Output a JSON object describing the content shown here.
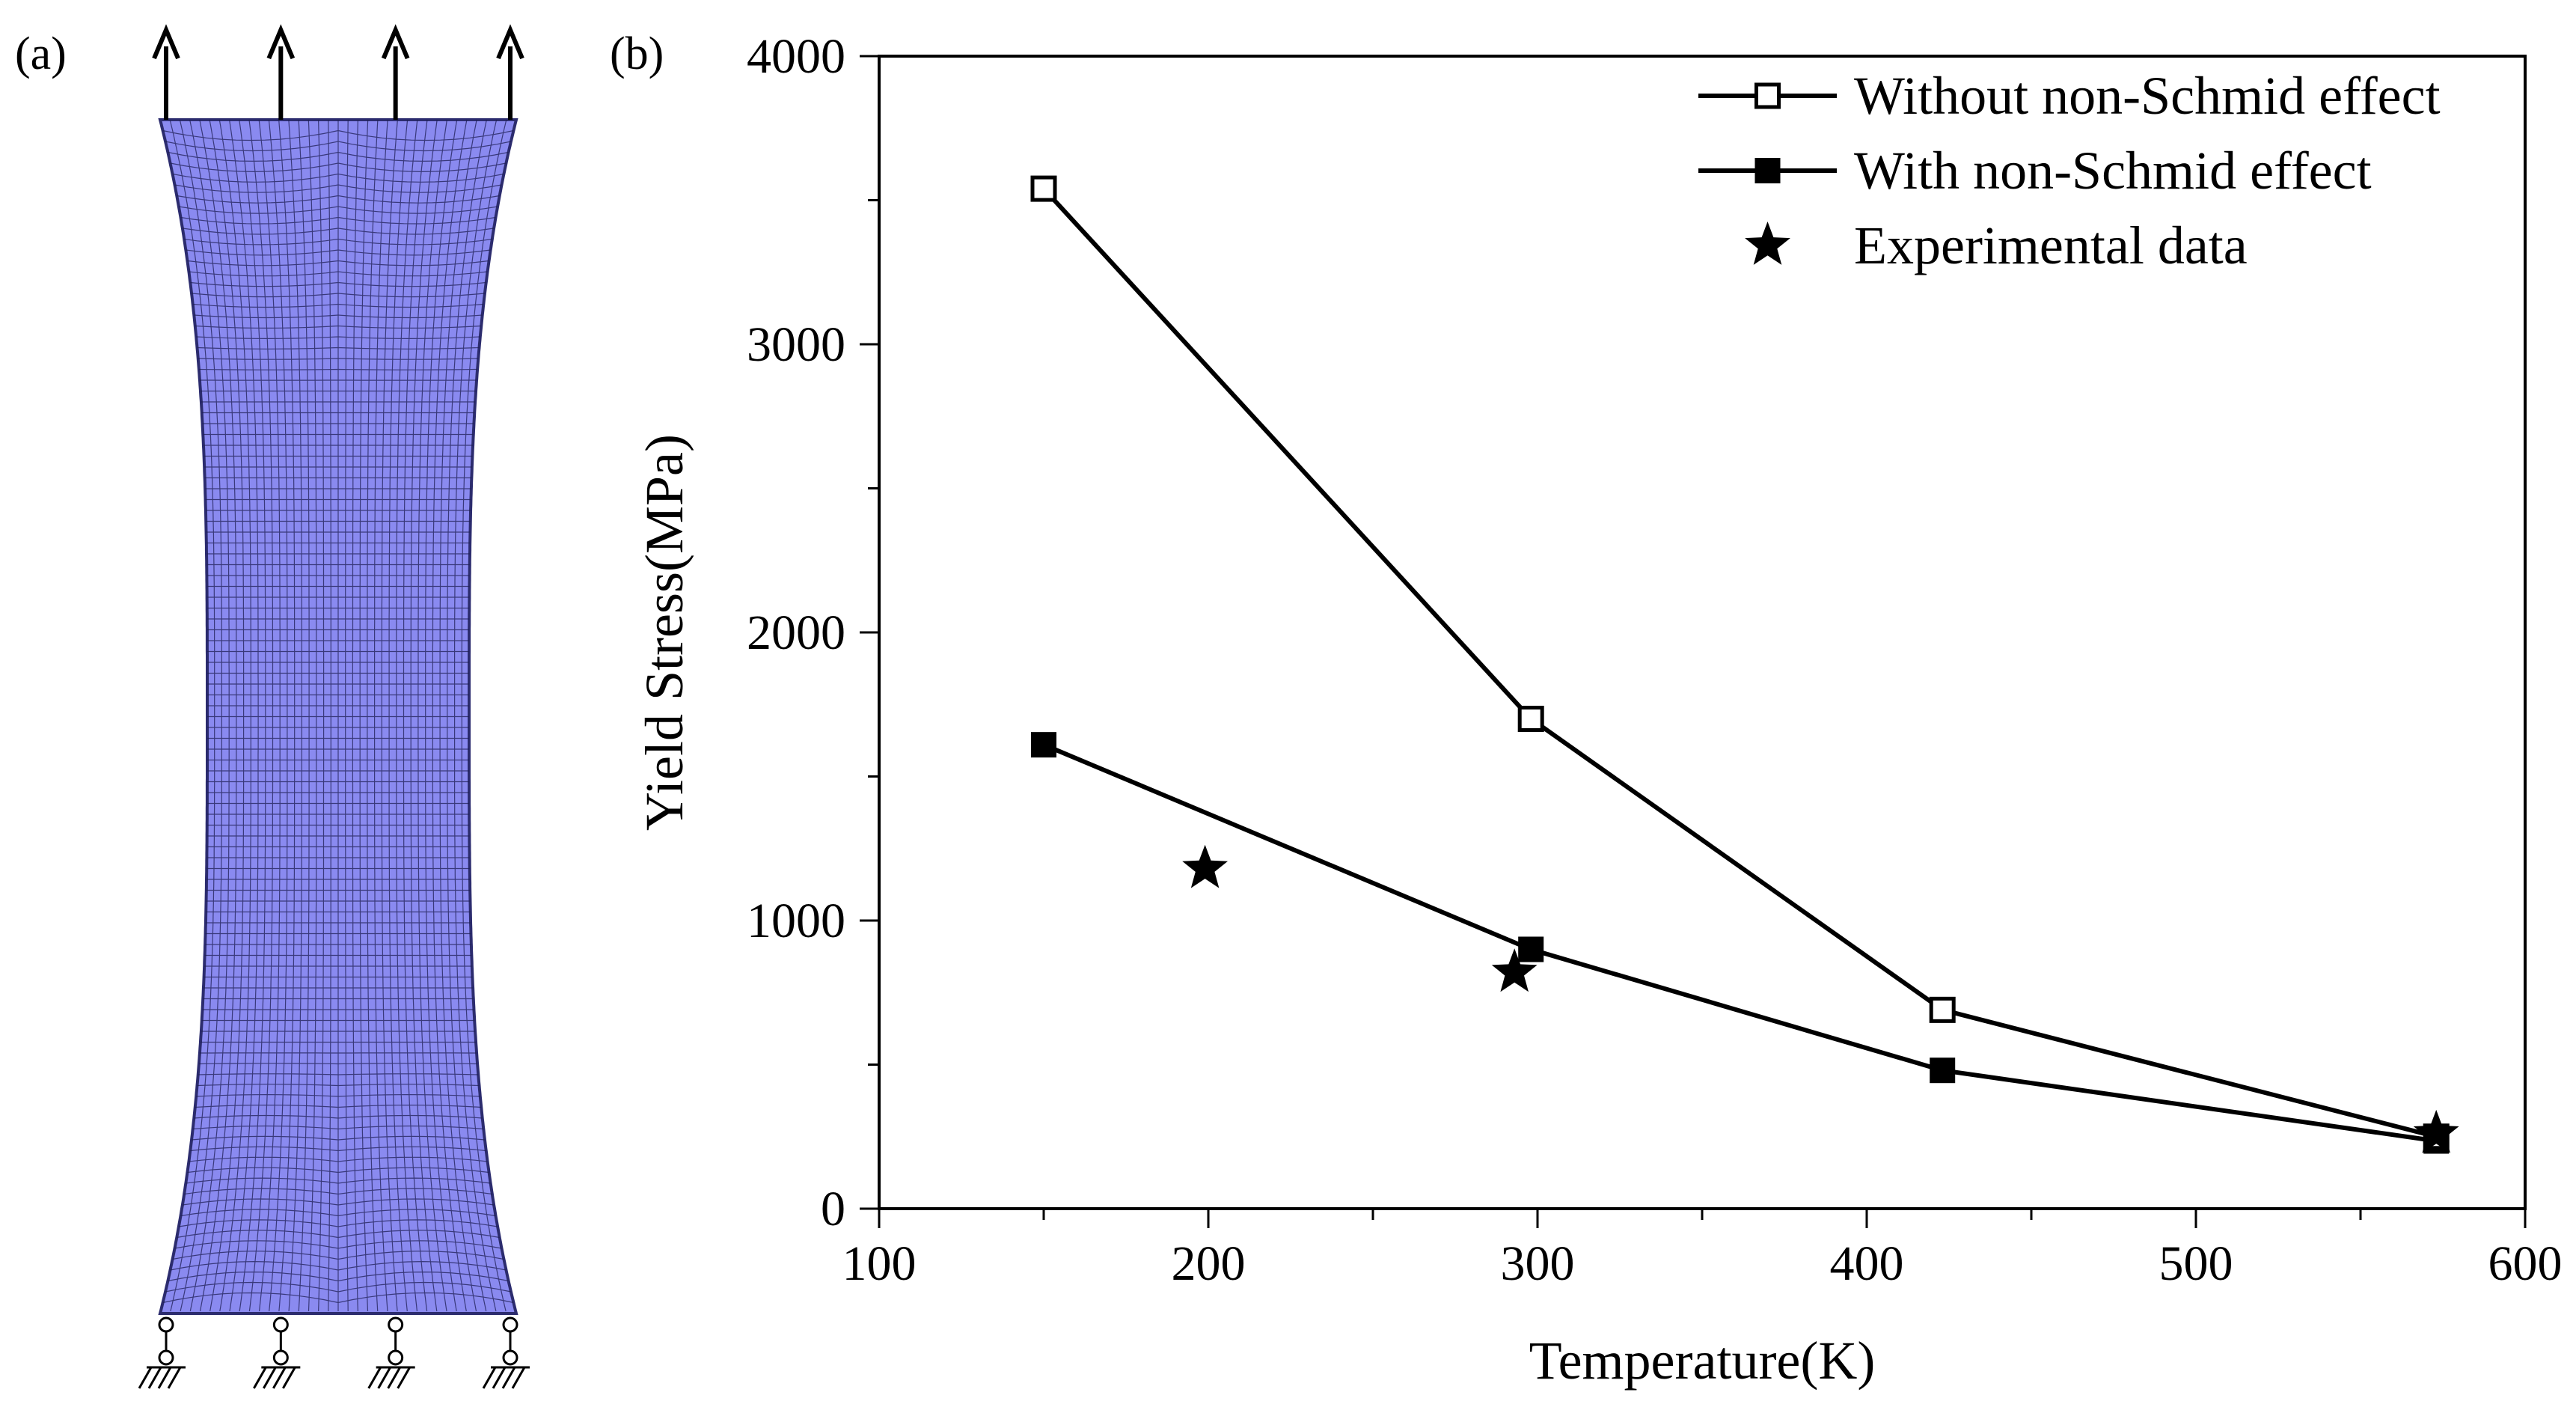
{
  "panel_a": {
    "label": "(a)",
    "mesh_color": "#8A8AF0",
    "load_arrow_count": 4,
    "support_count": 4
  },
  "panel_b": {
    "label": "(b)"
  },
  "chart_data": {
    "type": "line",
    "xlabel": "Temperature(K)",
    "ylabel": "Yield Stress(MPa)",
    "xlim": [
      100,
      600
    ],
    "ylim": [
      0,
      4000
    ],
    "xticks": [
      100,
      200,
      300,
      400,
      500,
      600
    ],
    "yticks": [
      0,
      1000,
      2000,
      3000,
      4000
    ],
    "grid": false,
    "legend_position": "top-right",
    "series": [
      {
        "name": "Without non-Schmid effect",
        "marker": "square-open",
        "line": true,
        "x": [
          150,
          298,
          423,
          573
        ],
        "y": [
          3540,
          1700,
          690,
          250
        ]
      },
      {
        "name": "With non-Schmid effect",
        "marker": "square-filled",
        "line": true,
        "x": [
          150,
          298,
          423,
          573
        ],
        "y": [
          1610,
          900,
          480,
          235
        ]
      },
      {
        "name": "Experimental data",
        "marker": "star",
        "line": false,
        "x": [
          199,
          293,
          573
        ],
        "y": [
          1180,
          820,
          260
        ]
      }
    ]
  }
}
